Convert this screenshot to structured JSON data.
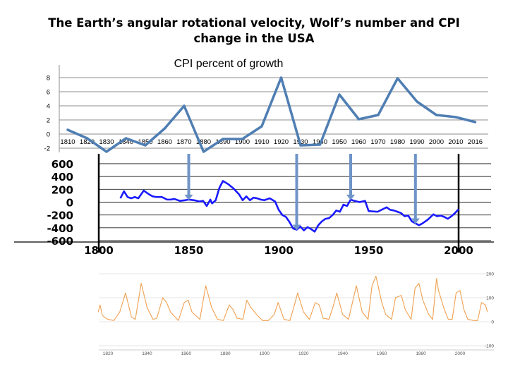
{
  "title": {
    "line1": "The Earth’s angular rotational velocity, Wolf’s number and CPI",
    "line2": "change in the USA"
  },
  "chart_data": [
    {
      "type": "line",
      "title": "CPI percent of growth",
      "x": [
        1810,
        1820,
        1830,
        1840,
        1850,
        1860,
        1870,
        1880,
        1890,
        1900,
        1910,
        1920,
        1930,
        1940,
        1950,
        1960,
        1970,
        1980,
        1990,
        2000,
        2010,
        2016
      ],
      "series": [
        {
          "values": [
            0.6,
            -0.6,
            -2.5,
            -0.6,
            -1.6,
            0.8,
            4.0,
            -2.5,
            -0.7,
            -0.7,
            1.1,
            8.0,
            -1.6,
            -1.5,
            5.6,
            2.1,
            2.7,
            7.9,
            4.6,
            2.7,
            2.4,
            1.7
          ]
        }
      ],
      "xticks": [
        "1810",
        "1820",
        "1830",
        "1840",
        "1850",
        "1860",
        "1870",
        "1880",
        "1890",
        "1900",
        "1910",
        "1920",
        "1930",
        "1940",
        "1950",
        "1960",
        "1970",
        "1980",
        "1990",
        "2000",
        "2010",
        "2016"
      ],
      "yticks": [
        "-2",
        "0",
        "2",
        "4",
        "6",
        "8"
      ],
      "ylim": [
        -2,
        9
      ],
      "grid": true,
      "color": "#4F7EB3"
    },
    {
      "type": "line",
      "x": [
        1812,
        1814,
        1816,
        1818,
        1820,
        1822,
        1825,
        1828,
        1830,
        1832,
        1835,
        1838,
        1840,
        1842,
        1845,
        1848,
        1850,
        1853,
        1856,
        1858,
        1860,
        1862,
        1863,
        1865,
        1867,
        1869,
        1872,
        1875,
        1878,
        1880,
        1882,
        1884,
        1886,
        1888,
        1890,
        1892,
        1895,
        1898,
        1900,
        1902,
        1904,
        1906,
        1908,
        1910,
        1912,
        1914,
        1916,
        1918,
        1920,
        1922,
        1924,
        1926,
        1928,
        1930,
        1932,
        1934,
        1936,
        1938,
        1940,
        1942,
        1945,
        1948,
        1950,
        1955,
        1960,
        1962,
        1964,
        1966,
        1968,
        1970,
        1972,
        1974,
        1976,
        1978,
        1980,
        1983,
        1986,
        1988,
        1990,
        1992,
        1994,
        1996,
        1998,
        2000
      ],
      "series": [
        {
          "values": [
            60,
            170,
            80,
            60,
            80,
            60,
            180,
            120,
            90,
            80,
            80,
            40,
            40,
            50,
            20,
            30,
            40,
            30,
            10,
            20,
            -60,
            40,
            -20,
            30,
            220,
            330,
            280,
            210,
            120,
            30,
            90,
            30,
            70,
            60,
            40,
            30,
            60,
            10,
            -120,
            -200,
            -230,
            -310,
            -410,
            -430,
            -380,
            -440,
            -390,
            -420,
            -460,
            -360,
            -300,
            -260,
            -250,
            -200,
            -130,
            -150,
            -40,
            -60,
            40,
            20,
            0,
            20,
            -140,
            -150,
            -80,
            -120,
            -130,
            -150,
            -170,
            -220,
            -210,
            -300,
            -330,
            -360,
            -330,
            -270,
            -190,
            -220,
            -210,
            -230,
            -260,
            -220,
            -170,
            -110
          ]
        }
      ],
      "xticks": [
        "1800",
        "1850",
        "1900",
        "1950",
        "2000"
      ],
      "yticks": [
        "600",
        "400",
        "200",
        "0",
        "-200",
        "-400",
        "-600"
      ],
      "xlim": [
        1800,
        2000
      ],
      "ylim": [
        -600,
        600
      ],
      "grid": true,
      "color": "#1a1aff",
      "arrow_x": [
        1850,
        1910,
        1940,
        1976
      ]
    },
    {
      "type": "line",
      "x": [
        1815,
        1816,
        1817,
        1818,
        1820,
        1823,
        1826,
        1829,
        1832,
        1834,
        1837,
        1840,
        1843,
        1845,
        1848,
        1850,
        1852,
        1856,
        1859,
        1861,
        1863,
        1867,
        1870,
        1873,
        1876,
        1879,
        1882,
        1884,
        1886,
        1889,
        1891,
        1893,
        1896,
        1899,
        1902,
        1905,
        1907,
        1910,
        1913,
        1915,
        1917,
        1920,
        1923,
        1926,
        1928,
        1930,
        1933,
        1935,
        1937,
        1940,
        1943,
        1945,
        1947,
        1950,
        1953,
        1955,
        1957,
        1960,
        1962,
        1965,
        1967,
        1970,
        1972,
        1975,
        1977,
        1979,
        1981,
        1984,
        1986,
        1988,
        1989,
        1992,
        1994,
        1996,
        1998,
        2000,
        2002,
        2004,
        2007,
        2009,
        2011,
        2013,
        2014
      ],
      "series": [
        {
          "values": [
            40,
            70,
            30,
            20,
            10,
            5,
            40,
            120,
            20,
            10,
            160,
            60,
            10,
            15,
            100,
            80,
            40,
            5,
            80,
            90,
            40,
            10,
            150,
            60,
            10,
            5,
            70,
            50,
            15,
            10,
            90,
            60,
            30,
            5,
            5,
            30,
            80,
            10,
            5,
            60,
            120,
            40,
            10,
            80,
            70,
            15,
            10,
            60,
            120,
            30,
            10,
            80,
            150,
            40,
            10,
            150,
            190,
            80,
            30,
            10,
            100,
            110,
            50,
            10,
            140,
            160,
            90,
            30,
            10,
            180,
            130,
            50,
            10,
            10,
            120,
            130,
            50,
            10,
            5,
            5,
            80,
            70,
            40
          ]
        }
      ],
      "xticks": [
        "1820",
        "1840",
        "1860",
        "1880",
        "1900",
        "1920",
        "1940",
        "1960",
        "1980",
        "2000"
      ],
      "yticks": [
        "200",
        "100",
        "0",
        "-100"
      ],
      "xlim": [
        1815,
        2015
      ],
      "ylim": [
        -100,
        220
      ],
      "grid": true,
      "color": "#F0A050"
    }
  ]
}
